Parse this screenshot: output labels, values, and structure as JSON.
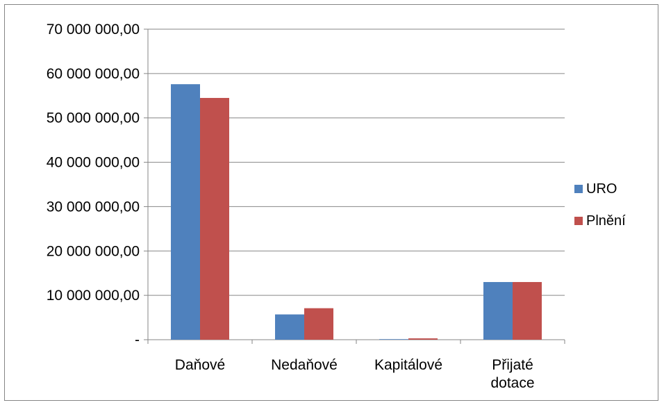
{
  "chart_data": {
    "type": "bar",
    "categories": [
      [
        "Daňové"
      ],
      [
        "Nedaňové"
      ],
      [
        "Kapitálové"
      ],
      [
        "Přijaté",
        "dotace"
      ]
    ],
    "category_names": [
      "Daňové",
      "Nedaňové",
      "Kapitálové",
      "Přijaté dotace"
    ],
    "series": [
      {
        "name": "URO",
        "color": "#4F81BD",
        "values": [
          57600000,
          5700000,
          100000,
          13000000
        ]
      },
      {
        "name": "Plnění",
        "color": "#C0504D",
        "values": [
          54500000,
          7100000,
          300000,
          13000000
        ]
      }
    ],
    "ylim": [
      0,
      70000000
    ],
    "y_ticks": [
      0,
      10000000,
      20000000,
      30000000,
      40000000,
      50000000,
      60000000,
      70000000
    ],
    "y_tick_labels": [
      "-",
      "10 000 000,00",
      "20 000 000,00",
      "30 000 000,00",
      "40 000 000,00",
      "50 000 000,00",
      "60 000 000,00",
      "70 000 000,00"
    ],
    "grid": true,
    "legend_position": "right",
    "title": "",
    "xlabel": "",
    "ylabel": ""
  }
}
